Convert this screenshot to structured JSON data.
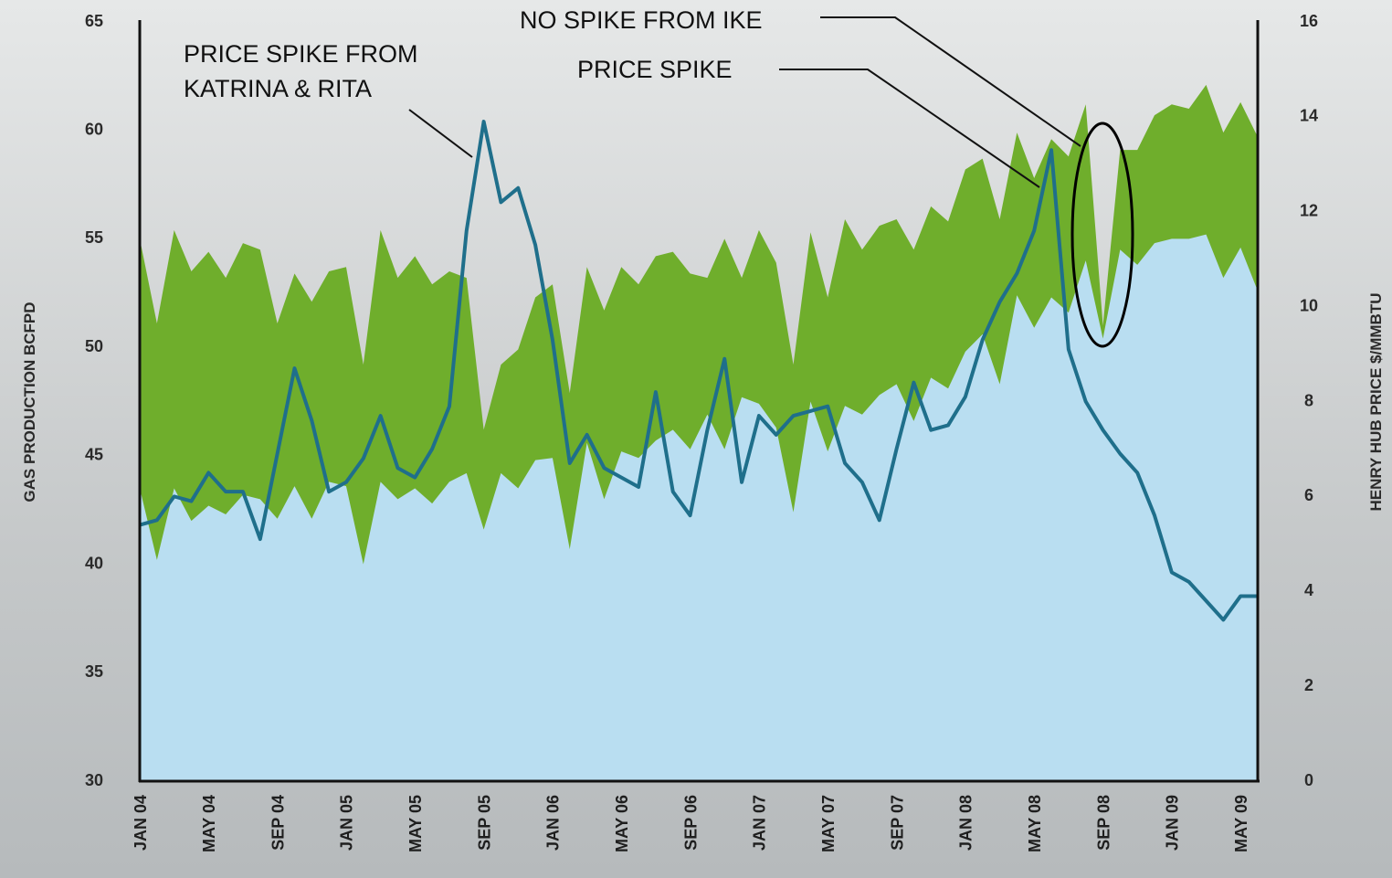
{
  "chart_data": {
    "type": "area",
    "annotations": [
      "PRICE SPIKE FROM",
      "KATRINA & RITA",
      "PRICE SPIKE",
      "NO SPIKE FROM IKE"
    ],
    "ylabel": "GAS PRODUCTION BCFPD",
    "y2label": "HENRY HUB PRICE $/MMBTU",
    "categories": [
      "JAN 04",
      null,
      null,
      null,
      "MAY 04",
      null,
      null,
      null,
      "SEP 04",
      null,
      null,
      null,
      "JAN 05",
      null,
      null,
      null,
      "MAY 05",
      null,
      null,
      null,
      "SEP 05",
      null,
      null,
      null,
      "JAN 06",
      null,
      null,
      null,
      "MAY 06",
      null,
      null,
      null,
      "SEP 06",
      null,
      null,
      null,
      "JAN 07",
      null,
      null,
      null,
      "MAY 07",
      null,
      null,
      null,
      "SEP 07",
      null,
      null,
      null,
      "JAN 08",
      null,
      null,
      null,
      "MAY 08",
      null,
      null,
      null,
      "SEP 08",
      null,
      null,
      null,
      "JAN 09",
      null,
      null,
      null,
      "MAY 09",
      null
    ],
    "ylim": [
      30,
      65
    ],
    "yticks": [
      30,
      35,
      40,
      45,
      50,
      55,
      60,
      65
    ],
    "y2lim": [
      0,
      16
    ],
    "y2ticks": [
      0,
      2,
      4,
      6,
      8,
      10,
      12,
      14,
      16
    ],
    "series": [
      {
        "type": "area",
        "color": "#6fae2c",
        "values": [
          55.0,
          51.1,
          55.4,
          53.5,
          54.4,
          53.2,
          54.8,
          54.5,
          51.1,
          53.4,
          52.1,
          53.5,
          53.7,
          49.2,
          55.4,
          53.2,
          54.2,
          52.9,
          53.5,
          53.2,
          46.2,
          49.2,
          49.9,
          52.3,
          52.9,
          47.9,
          53.7,
          51.7,
          53.7,
          52.9,
          54.2,
          54.4,
          53.4,
          53.2,
          55.0,
          53.2,
          55.4,
          53.9,
          49.2,
          55.3,
          52.3,
          55.9,
          54.5,
          55.6,
          55.9,
          54.5,
          56.5,
          55.8,
          58.2,
          58.7,
          55.9,
          59.9,
          57.8,
          59.6,
          58.8,
          61.2,
          51.0,
          59.1,
          59.1,
          60.7,
          61.2,
          61.0,
          62.1,
          59.9,
          61.3,
          59.7
        ]
      },
      {
        "type": "area",
        "color": "#b9def1",
        "values": [
          43.5,
          40.2,
          43.5,
          42.0,
          42.7,
          42.3,
          43.2,
          43.0,
          42.1,
          43.6,
          42.1,
          43.8,
          43.6,
          40.0,
          43.8,
          43.0,
          43.5,
          42.8,
          43.8,
          44.2,
          41.6,
          44.2,
          43.5,
          44.8,
          44.9,
          40.7,
          45.6,
          43.0,
          45.2,
          44.9,
          45.7,
          46.2,
          45.3,
          46.9,
          45.3,
          47.7,
          47.4,
          46.3,
          42.4,
          47.5,
          45.2,
          47.3,
          46.9,
          47.8,
          48.3,
          46.6,
          48.6,
          48.1,
          49.8,
          50.6,
          48.3,
          52.4,
          50.9,
          52.3,
          51.6,
          54.0,
          50.4,
          54.5,
          53.8,
          54.8,
          55.0,
          55.0,
          55.2,
          53.2,
          54.6,
          52.6
        ]
      },
      {
        "type": "line",
        "axis": "y2",
        "color": "#1f6f8b",
        "values": [
          5.4,
          5.5,
          6.0,
          5.9,
          6.5,
          6.1,
          6.1,
          5.1,
          6.9,
          8.7,
          7.6,
          6.1,
          6.3,
          6.8,
          7.7,
          6.6,
          6.4,
          7.0,
          7.9,
          11.6,
          13.9,
          12.2,
          12.5,
          11.3,
          9.3,
          6.7,
          7.3,
          6.6,
          6.4,
          6.2,
          8.2,
          6.1,
          5.6,
          7.4,
          8.9,
          6.3,
          7.7,
          7.3,
          7.7,
          7.8,
          7.9,
          6.7,
          6.3,
          5.5,
          7.0,
          8.4,
          7.4,
          7.5,
          8.1,
          9.3,
          10.1,
          10.7,
          11.6,
          13.3,
          9.1,
          8.0,
          7.4,
          6.9,
          6.5,
          5.6,
          4.4,
          4.2,
          3.8,
          3.4,
          3.9,
          3.9
        ]
      }
    ]
  }
}
